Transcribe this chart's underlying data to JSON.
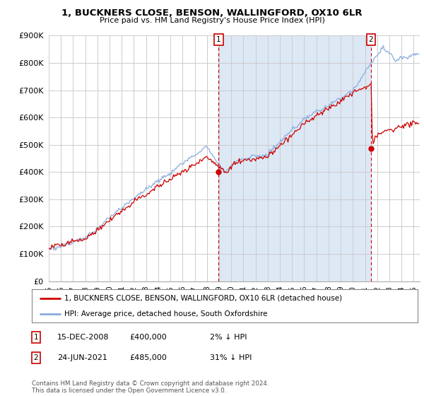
{
  "title": "1, BUCKNERS CLOSE, BENSON, WALLINGFORD, OX10 6LR",
  "subtitle": "Price paid vs. HM Land Registry's House Price Index (HPI)",
  "ylim": [
    0,
    900000
  ],
  "xlim_start": 1995.0,
  "xlim_end": 2025.5,
  "sale1_x": 2008.96,
  "sale1_y": 400000,
  "sale2_x": 2021.48,
  "sale2_y": 485000,
  "legend_line1": "1, BUCKNERS CLOSE, BENSON, WALLINGFORD, OX10 6LR (detached house)",
  "legend_line2": "HPI: Average price, detached house, South Oxfordshire",
  "annotation1_date": "15-DEC-2008",
  "annotation1_price": "£400,000",
  "annotation1_hpi": "2% ↓ HPI",
  "annotation2_date": "24-JUN-2021",
  "annotation2_price": "£485,000",
  "annotation2_hpi": "31% ↓ HPI",
  "footer": "Contains HM Land Registry data © Crown copyright and database right 2024.\nThis data is licensed under the Open Government Licence v3.0.",
  "line_color_property": "#cc0000",
  "line_color_hpi": "#88aadd",
  "shade_color": "#dde8f5",
  "background_color": "#ffffff",
  "grid_color": "#cccccc"
}
